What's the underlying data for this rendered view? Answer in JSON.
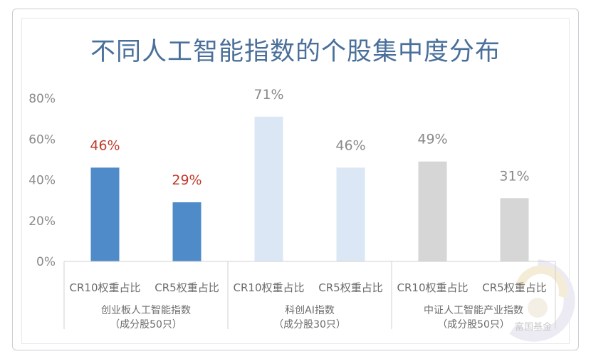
{
  "chart_data": {
    "type": "bar",
    "title": "不同人工智能指数的个股集中度分布",
    "yticks": [
      "0%",
      "20%",
      "40%",
      "60%",
      "80%"
    ],
    "ylim": [
      0,
      80
    ],
    "grid": false,
    "categories": [
      "CR10权重占比",
      "CR5权重占比",
      "CR10权重占比",
      "CR5权重占比",
      "CR10权重占比",
      "CR5权重占比"
    ],
    "values": [
      46,
      29,
      71,
      46,
      49,
      31
    ],
    "value_labels": [
      "46%",
      "29%",
      "71%",
      "46%",
      "49%",
      "31%"
    ],
    "bar_colors": [
      "#4f8bc9",
      "#4f8bc9",
      "#dbe7f4",
      "#dbe7f4",
      "#d6d6d6",
      "#d6d6d6"
    ],
    "label_colors": [
      "#c0392b",
      "#c0392b",
      "#8a8a8a",
      "#8a8a8a",
      "#8a8a8a",
      "#8a8a8a"
    ],
    "groups": [
      {
        "line1": "创业板人工智能指数",
        "line2": "（成分股50只）"
      },
      {
        "line1": "科创AI指数",
        "line2": "（成分股30只）"
      },
      {
        "line1": "中证人工智能产业指数",
        "line2": "（成分股50只）"
      }
    ]
  },
  "watermark": {
    "text": "富国基金",
    "icon": "fuguo-logo-icon"
  }
}
